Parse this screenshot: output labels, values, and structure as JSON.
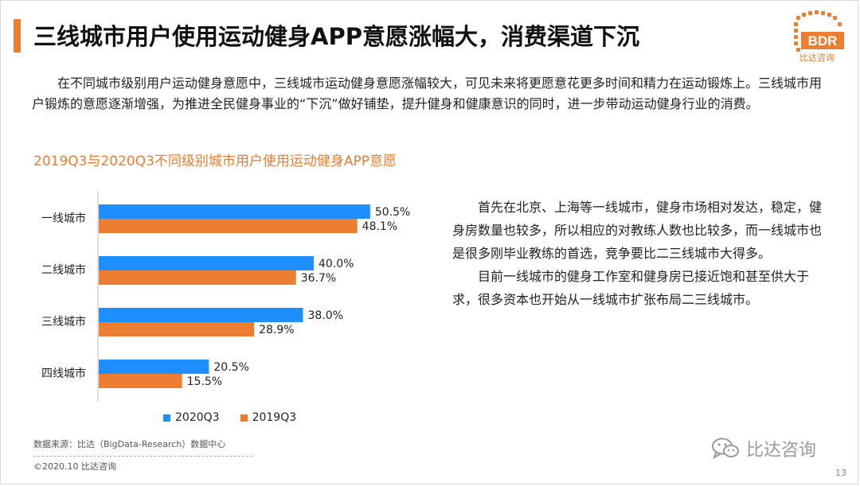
{
  "header": {
    "title": "三线城市用户使用运动健身APP意愿涨幅大，消费渠道下沉",
    "logo_text": "BDR",
    "logo_subtitle": "比达咨询"
  },
  "intro": "在不同城市级别用户运动健身意愿中，三线城市运动健身意愿涨幅较大，可见未来将更愿意花更多时间和精力在运动锻炼上。三线城市用户锻炼的意愿逐渐增强，为推进全民健身事业的“下沉”做好铺垫，提升健身和健康意识的同时，进一步带动运动健身行业的消费。",
  "chart_data": {
    "type": "bar",
    "orientation": "horizontal",
    "title": "2019Q3与2020Q3不同级别城市用户使用运动健身APP意愿",
    "categories": [
      "一线城市",
      "二线城市",
      "三线城市",
      "四线城市"
    ],
    "series": [
      {
        "name": "2020Q3",
        "color": "#1f8fff",
        "values": [
          50.5,
          40.0,
          38.0,
          20.5
        ],
        "labels": [
          "50.5%",
          "40.0%",
          "38.0%",
          "20.5%"
        ]
      },
      {
        "name": "2019Q3",
        "color": "#ed7d31",
        "values": [
          48.1,
          36.7,
          28.9,
          15.5
        ],
        "labels": [
          "48.1%",
          "36.7%",
          "28.9%",
          "15.5%"
        ]
      }
    ],
    "xlim": [
      0,
      60
    ],
    "legend_position": "bottom",
    "grid": false
  },
  "right_text": {
    "paragraphs": [
      "首先在北京、上海等一线城市，健身市场相对发达，稳定，健身房数量也较多，所以相应的对教练人数也比较多，而一线城市也是很多刚毕业教练的首选，竞争要比二三线城市大得多。",
      "目前一线城市的健身工作室和健身房已接近饱和甚至供大于求，很多资本也开始从一线城市扩张布局二三线城市。"
    ]
  },
  "footer": {
    "source": "数据来源：比达（BigData-Research）数据中心",
    "copyright": "©2020.10 比达咨询",
    "wechat": "比达咨询",
    "page_number": "13"
  },
  "colors": {
    "accent": "#ed7d31",
    "series_blue": "#1f8fff"
  }
}
